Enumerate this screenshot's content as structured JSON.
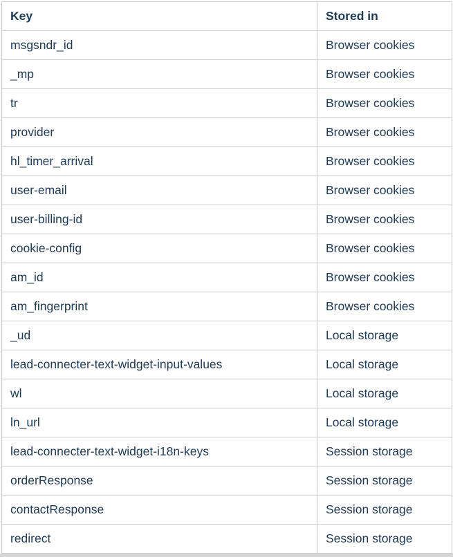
{
  "table": {
    "columns": [
      {
        "label": "Key"
      },
      {
        "label": "Stored in"
      }
    ],
    "rows": [
      [
        "msgsndr_id",
        "Browser cookies"
      ],
      [
        "_mp",
        "Browser cookies"
      ],
      [
        "tr",
        "Browser cookies"
      ],
      [
        "provider",
        "Browser cookies"
      ],
      [
        "hl_timer_arrival",
        "Browser cookies"
      ],
      [
        "user-email",
        "Browser cookies"
      ],
      [
        "user-billing-id",
        "Browser cookies"
      ],
      [
        "cookie-config",
        "Browser cookies"
      ],
      [
        "am_id",
        "Browser cookies"
      ],
      [
        "am_fingerprint",
        "Browser cookies"
      ],
      [
        "_ud",
        "Local storage"
      ],
      [
        "lead-connecter-text-widget-input-values",
        "Local storage"
      ],
      [
        "wl",
        "Local storage"
      ],
      [
        "ln_url",
        "Local storage"
      ],
      [
        "lead-connecter-text-widget-i18n-keys",
        "Session storage"
      ],
      [
        "orderResponse",
        "Session storage"
      ],
      [
        "contactResponse",
        "Session storage"
      ],
      [
        "redirect",
        "Session storage"
      ]
    ],
    "colors": {
      "text": "#1d3a56",
      "border": "#c9c9c9",
      "background": "#ffffff"
    }
  }
}
